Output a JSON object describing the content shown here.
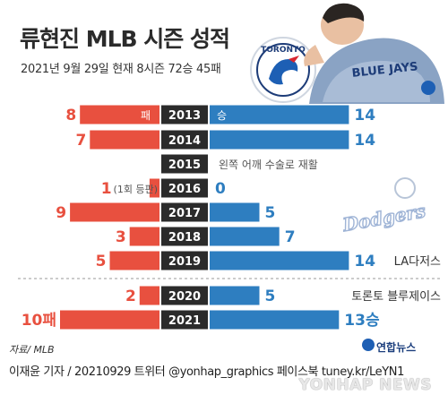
{
  "header": {
    "title": "류현진 MLB 시즌 성적",
    "subtitle": "2021년 9월 29일 현재 8시즌 72승 45패"
  },
  "footer": {
    "source": "자료/ MLB",
    "credit": "이재윤 기자 / 20210929   트위터 @yonhap_graphics  페이스북 tuney.kr/LeYN1",
    "brand": "연합뉴스",
    "watermark": "YONHAP NEWS"
  },
  "logos": {
    "blue_jays_patch": "TORONTO",
    "jersey_text": "BLUE JAYS",
    "dodgers": "Dodgers"
  },
  "colors": {
    "loss": "#e8503f",
    "win": "#2e7ec0",
    "year_bar": "#2b2b2b"
  },
  "chart_data": {
    "type": "bar",
    "title": "류현진 MLB 시즌 성적",
    "categories": [
      "2013",
      "2014",
      "2015",
      "2016",
      "2017",
      "2018",
      "2019",
      "2020",
      "2021"
    ],
    "series": [
      {
        "name": "패",
        "values": [
          8,
          7,
          null,
          1,
          9,
          3,
          5,
          2,
          10
        ]
      },
      {
        "name": "승",
        "values": [
          14,
          14,
          null,
          0,
          5,
          7,
          14,
          5,
          13
        ]
      }
    ],
    "value_labels": {
      "losses": [
        "8",
        "7",
        "",
        "1",
        "9",
        "3",
        "5",
        "2",
        "10패"
      ],
      "wins": [
        "14",
        "14",
        "",
        "0",
        "5",
        "7",
        "14",
        "5",
        "13승"
      ]
    },
    "bar_inline_labels": {
      "loss": "패",
      "win": "승"
    },
    "annotations": {
      "2015": "왼쪽 어깨 수술로 재활",
      "2016": "(1회 등판)",
      "2019": "LA다저스",
      "2020": "토론토 블루제이스"
    },
    "teams": [
      {
        "name": "LA다저스",
        "years": [
          "2013",
          "2019"
        ]
      },
      {
        "name": "토론토 블루제이스",
        "years": [
          "2020",
          "2021"
        ]
      }
    ],
    "xlim": [
      0,
      14
    ]
  }
}
